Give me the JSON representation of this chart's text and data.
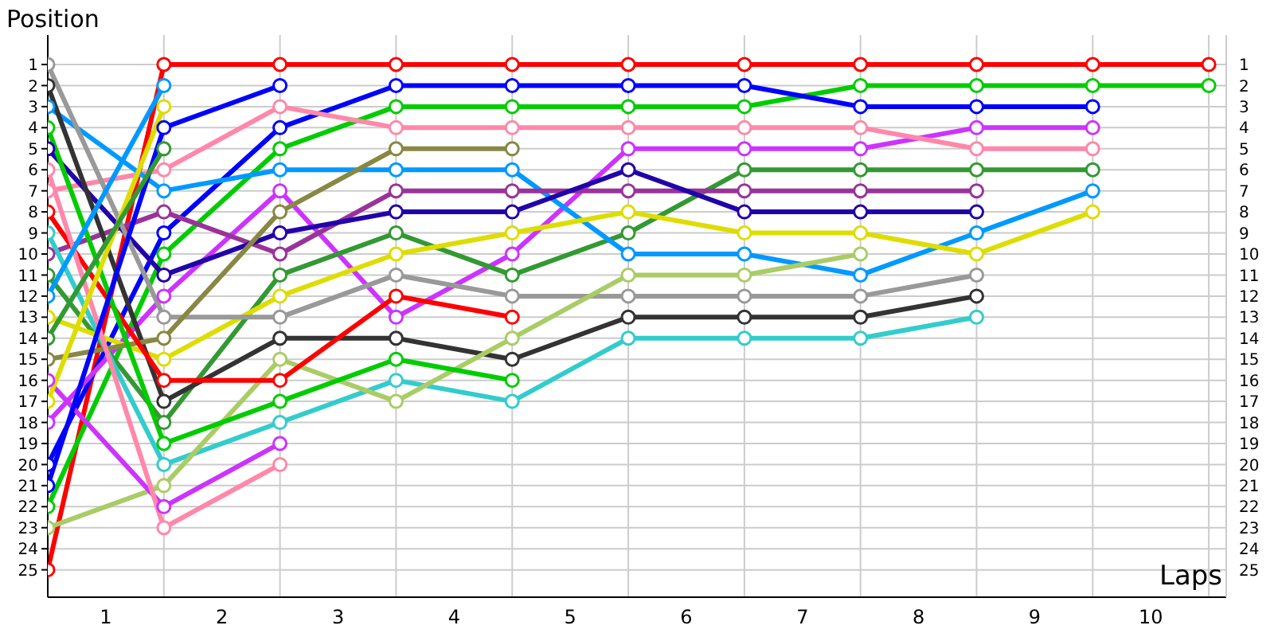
{
  "chart_data": {
    "type": "line",
    "xlabel": "Laps",
    "ylabel": "Position",
    "x": [
      0,
      1,
      2,
      3,
      4,
      5,
      6,
      7,
      8,
      9,
      10
    ],
    "xlim": [
      0,
      10.15
    ],
    "xticks": [
      {
        "value": 0.5,
        "label": "1"
      },
      {
        "value": 1,
        "label": null
      },
      {
        "value": 1.5,
        "label": "2"
      },
      {
        "value": 2,
        "label": null
      },
      {
        "value": 2.5,
        "label": "3"
      },
      {
        "value": 3,
        "label": null
      },
      {
        "value": 3.5,
        "label": "4"
      },
      {
        "value": 4,
        "label": null
      },
      {
        "value": 4.5,
        "label": "5"
      },
      {
        "value": 5,
        "label": null
      },
      {
        "value": 5.5,
        "label": "6"
      },
      {
        "value": 6,
        "label": null
      },
      {
        "value": 6.5,
        "label": "7"
      },
      {
        "value": 7,
        "label": null
      },
      {
        "value": 7.5,
        "label": "8"
      },
      {
        "value": 8,
        "label": null
      },
      {
        "value": 8.5,
        "label": "9"
      },
      {
        "value": 9,
        "label": null
      },
      {
        "value": 9.5,
        "label": "10"
      },
      {
        "value": 10,
        "label": null
      }
    ],
    "ylim": [
      26.3,
      -0.4
    ],
    "yticks": [
      1,
      2,
      3,
      4,
      5,
      6,
      7,
      8,
      9,
      10,
      11,
      12,
      13,
      14,
      15,
      16,
      17,
      18,
      19,
      20,
      21,
      22,
      23,
      24,
      25
    ],
    "y2lim": [
      26.3,
      -0.4
    ],
    "y2ticks": [
      1,
      2,
      3,
      4,
      5,
      6,
      7,
      8,
      9,
      10,
      11,
      12,
      13,
      14,
      15,
      16,
      17,
      18,
      19,
      20,
      21,
      22,
      23,
      24,
      25
    ],
    "grid": true,
    "legend": false,
    "marker": "circle",
    "line_style": "solid",
    "series": [
      {
        "color": "#ff0000",
        "values": [
          25,
          1,
          1,
          1,
          1,
          1,
          1,
          1,
          1,
          1,
          1
        ]
      },
      {
        "color": "#00cc00",
        "values": [
          22,
          10,
          5,
          3,
          3,
          3,
          3,
          2,
          2,
          2,
          2
        ]
      },
      {
        "color": "#0000ff",
        "values": [
          20,
          9,
          4,
          2,
          2,
          2,
          2,
          3,
          3,
          3,
          null
        ]
      },
      {
        "color": "#cc33ff",
        "values": [
          18,
          12,
          7,
          13,
          10,
          5,
          5,
          5,
          4,
          4,
          null
        ]
      },
      {
        "color": "#ff88aa",
        "values": [
          7,
          6,
          3,
          4,
          4,
          4,
          4,
          4,
          5,
          5,
          null
        ]
      },
      {
        "color": "#339933",
        "values": [
          11,
          18,
          11,
          9,
          11,
          9,
          6,
          6,
          6,
          6,
          null
        ]
      },
      {
        "color": "#0099ff",
        "values": [
          3,
          7,
          6,
          6,
          6,
          10,
          10,
          11,
          9,
          7,
          null
        ]
      },
      {
        "color": "#dddd00",
        "values": [
          13,
          15,
          12,
          10,
          9,
          8,
          9,
          9,
          10,
          8,
          null
        ]
      },
      {
        "color": "#993399",
        "values": [
          10,
          8,
          10,
          7,
          7,
          7,
          7,
          7,
          7,
          null,
          null
        ]
      },
      {
        "color": "#2200aa",
        "values": [
          5,
          11,
          9,
          8,
          8,
          6,
          8,
          8,
          8,
          null,
          null
        ]
      },
      {
        "color": "#999999",
        "values": [
          1,
          13,
          13,
          11,
          12,
          12,
          12,
          12,
          11,
          null,
          null
        ]
      },
      {
        "color": "#333333",
        "values": [
          2,
          17,
          14,
          14,
          15,
          13,
          13,
          13,
          12,
          null,
          null
        ]
      },
      {
        "color": "#33cccc",
        "values": [
          9,
          20,
          18,
          16,
          17,
          14,
          14,
          14,
          13,
          null,
          null
        ]
      },
      {
        "color": "#aacc66",
        "values": [
          23,
          21,
          15,
          17,
          14,
          11,
          11,
          10,
          null,
          null,
          null
        ]
      },
      {
        "color": "#888844",
        "values": [
          15,
          14,
          8,
          5,
          5,
          null,
          null,
          null,
          null,
          null,
          null
        ]
      },
      {
        "color": "#ff0000",
        "values": [
          8,
          16,
          16,
          12,
          13,
          null,
          null,
          null,
          null,
          null,
          null
        ]
      },
      {
        "color": "#00cc00",
        "values": [
          4,
          19,
          17,
          15,
          16,
          null,
          null,
          null,
          null,
          null,
          null
        ]
      },
      {
        "color": "#cc33ff",
        "values": [
          16,
          22,
          19,
          null,
          null,
          null,
          null,
          null,
          null,
          null,
          null
        ]
      },
      {
        "color": "#ff88aa",
        "values": [
          6,
          23,
          20,
          null,
          null,
          null,
          null,
          null,
          null,
          null,
          null
        ]
      },
      {
        "color": "#0000ff",
        "values": [
          21,
          4,
          2,
          null,
          null,
          null,
          null,
          null,
          null,
          null,
          null
        ]
      },
      {
        "color": "#0099ff",
        "values": [
          12,
          2,
          null,
          null,
          null,
          null,
          null,
          null,
          null,
          null,
          null
        ]
      },
      {
        "color": "#dddd00",
        "values": [
          17,
          3,
          null,
          null,
          null,
          null,
          null,
          null,
          null,
          null,
          null
        ]
      },
      {
        "color": "#339933",
        "values": [
          14,
          5,
          null,
          null,
          null,
          null,
          null,
          null,
          null,
          null,
          null
        ]
      }
    ]
  }
}
